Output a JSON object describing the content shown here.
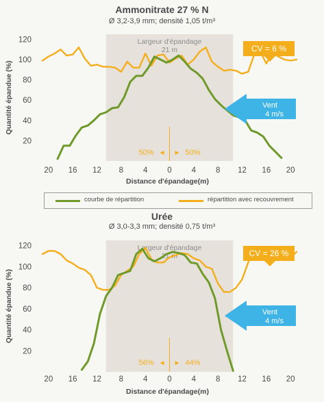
{
  "colors": {
    "repartition": "#6f9a2a",
    "recouvrement": "#f5ae1b",
    "zone": "#e6e1db",
    "zone_text": "#8c8c8c",
    "wind": "#3eb3e6",
    "axis_text": "#4a4a4a"
  },
  "legend": {
    "repartition_label": "courbe de répartition",
    "recouvrement_label": "répartition avec recouvrement"
  },
  "chart_data": [
    {
      "type": "line",
      "title": "Ammonitrate 27 % N",
      "subtitle": "Ø 3,2-3,9 mm; densité 1,05 t/m³",
      "xlabel": "Distance d'épandage(m)",
      "ylabel": "Quantité épandue (%)",
      "xlim": [
        -21,
        21
      ],
      "ylim": [
        0,
        125
      ],
      "x_ticks": [
        -20,
        -16,
        -12,
        -8,
        -4,
        0,
        4,
        8,
        12,
        16,
        20
      ],
      "x_tick_labels": [
        "20",
        "16",
        "12",
        "8",
        "4",
        "0",
        "4",
        "8",
        "12",
        "16",
        "20"
      ],
      "y_ticks": [
        20,
        40,
        60,
        80,
        100,
        120
      ],
      "zone": {
        "label": "Largeur d'épandage",
        "value": "21 m",
        "from": -10.5,
        "to": 10.5
      },
      "cv_label": "CV = 6 %",
      "wind_label": "Vent",
      "wind_speed": "4 m/s",
      "split_left": "50%",
      "split_right": "50%",
      "arrow_left": "◄",
      "arrow_right": "►",
      "series": [
        {
          "name": "courbe de répartition",
          "x": [
            -18.5,
            -17.5,
            -16.5,
            -15.5,
            -14.5,
            -13.5,
            -12.5,
            -11.5,
            -10.5,
            -9.5,
            -8.5,
            -7.5,
            -6.5,
            -5.5,
            -4.5,
            -3.5,
            -2.5,
            -1.5,
            -0.5,
            0.5,
            1.5,
            2.5,
            3.5,
            4.5,
            5.5,
            6.5,
            7.5,
            8.5,
            9.5,
            10.5,
            11.5,
            12.5,
            13.5,
            14.5,
            15.5,
            16.5,
            17.5,
            18.5
          ],
          "values": [
            2,
            15,
            15,
            25,
            33,
            35,
            40,
            46,
            48,
            52,
            53,
            63,
            78,
            84,
            84,
            92,
            103,
            100,
            97,
            100,
            104,
            98,
            91,
            87,
            81,
            70,
            61,
            55,
            50,
            45,
            43,
            40,
            30,
            28,
            24,
            15,
            9,
            3
          ]
        },
        {
          "name": "répartition avec recouvrement",
          "x": [
            -21,
            -20,
            -19,
            -18,
            -17,
            -16,
            -15,
            -14,
            -13,
            -12,
            -11,
            -10,
            -9,
            -8,
            -7,
            -6,
            -5,
            -4,
            -3,
            -2,
            -1,
            0,
            1,
            2,
            3,
            4,
            5,
            6,
            7,
            8,
            9,
            10,
            11,
            12,
            13,
            14,
            15,
            16,
            17,
            18,
            19,
            20,
            21
          ],
          "values": [
            99,
            103,
            106,
            110,
            104,
            105,
            112,
            101,
            94,
            95,
            93,
            93,
            92,
            88,
            98,
            92,
            92,
            106,
            94,
            104,
            105,
            97,
            101,
            104,
            95,
            100,
            108,
            112,
            98,
            93,
            89,
            90,
            89,
            86,
            88,
            105,
            108,
            96,
            107,
            103,
            100,
            99,
            100
          ]
        }
      ]
    },
    {
      "type": "line",
      "title": "Urée",
      "subtitle": "Ø 3,0-3,3 mm; densité 0,75 t/m³",
      "xlabel": "Distance d'épandage(m)",
      "ylabel": "Quantité épandue (%)",
      "xlim": [
        -21,
        21
      ],
      "ylim": [
        0,
        125
      ],
      "x_ticks": [
        -20,
        -16,
        -12,
        -8,
        -4,
        0,
        4,
        8,
        12,
        16,
        20
      ],
      "x_tick_labels": [
        "20",
        "16",
        "12",
        "8",
        "4",
        "0",
        "4",
        "8",
        "12",
        "16",
        "20"
      ],
      "y_ticks": [
        20,
        40,
        60,
        80,
        100,
        120
      ],
      "zone": {
        "label": "Largeur d'épandage",
        "value": "21 m",
        "from": -10.5,
        "to": 10.5
      },
      "cv_label": "CV = 26 %",
      "wind_label": "Vent",
      "wind_speed": "4 m/s",
      "split_left": "56%",
      "split_right": "44%",
      "arrow_left": "◄",
      "arrow_right": "►",
      "series": [
        {
          "name": "courbe de répartition",
          "x": [
            -14.5,
            -13.5,
            -12.5,
            -11.5,
            -10.5,
            -9.5,
            -8.5,
            -7.5,
            -6.5,
            -5.5,
            -4.5,
            -3.5,
            -2.5,
            -1.5,
            -0.5,
            0.5,
            1.5,
            2.5,
            3.5,
            4.5,
            5.5,
            6.5,
            7.5,
            8.5,
            9.5,
            10.5
          ],
          "values": [
            2,
            10,
            27,
            55,
            72,
            80,
            92,
            94,
            96,
            112,
            117,
            108,
            105,
            108,
            112,
            114,
            113,
            111,
            104,
            103,
            93,
            85,
            70,
            40,
            20,
            1
          ]
        },
        {
          "name": "répartition avec recouvrement",
          "x": [
            -21,
            -20,
            -19,
            -18,
            -17,
            -16,
            -15,
            -14,
            -13,
            -12,
            -11,
            -10,
            -9,
            -8,
            -7,
            -6,
            -5,
            -4,
            -3,
            -2,
            -1,
            0,
            1,
            2,
            3,
            4,
            5,
            6,
            7,
            8,
            9,
            10,
            11,
            12,
            13,
            14,
            15,
            16,
            17,
            18,
            19,
            20,
            21
          ],
          "values": [
            112,
            115,
            115,
            112,
            106,
            103,
            99,
            97,
            92,
            80,
            78,
            78,
            82,
            92,
            96,
            100,
            112,
            118,
            107,
            104,
            104,
            109,
            111,
            113,
            112,
            108,
            106,
            100,
            98,
            84,
            76,
            76,
            80,
            88,
            104,
            118,
            112,
            110,
            116,
            108,
            106,
            109,
            114
          ]
        }
      ]
    }
  ]
}
